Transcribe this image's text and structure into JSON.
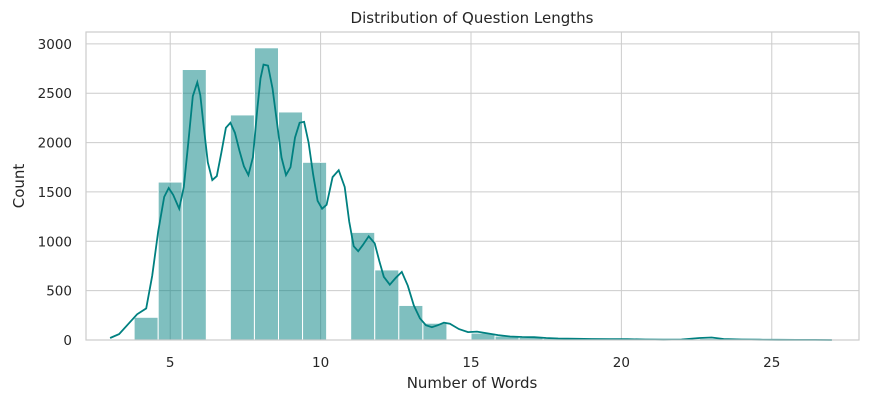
{
  "chart_data": {
    "type": "bar",
    "title": "Distribution of Question Lengths",
    "xlabel": "Number of Words",
    "ylabel": "Count",
    "xlim": [
      2.2,
      27.9
    ],
    "ylim": [
      0,
      3120
    ],
    "xticks": [
      5,
      10,
      15,
      20,
      25
    ],
    "yticks": [
      0,
      500,
      1000,
      1500,
      2000,
      2500,
      3000
    ],
    "grid": true,
    "color": "#008080",
    "bins": [
      {
        "x0": 3.8,
        "x1": 4.6,
        "count": 230
      },
      {
        "x0": 4.6,
        "x1": 5.4,
        "count": 1600
      },
      {
        "x0": 5.4,
        "x1": 6.2,
        "count": 2740
      },
      {
        "x0": 7.0,
        "x1": 7.8,
        "count": 2280
      },
      {
        "x0": 7.8,
        "x1": 8.6,
        "count": 2960
      },
      {
        "x0": 8.6,
        "x1": 9.4,
        "count": 2310
      },
      {
        "x0": 9.4,
        "x1": 10.2,
        "count": 1800
      },
      {
        "x0": 11.0,
        "x1": 11.8,
        "count": 1090
      },
      {
        "x0": 11.8,
        "x1": 12.6,
        "count": 710
      },
      {
        "x0": 12.6,
        "x1": 13.4,
        "count": 350
      },
      {
        "x0": 13.4,
        "x1": 14.2,
        "count": 170
      },
      {
        "x0": 15.0,
        "x1": 15.8,
        "count": 70
      },
      {
        "x0": 15.8,
        "x1": 16.6,
        "count": 40
      },
      {
        "x0": 16.6,
        "x1": 17.4,
        "count": 25
      },
      {
        "x0": 17.4,
        "x1": 18.2,
        "count": 15
      },
      {
        "x0": 18.2,
        "x1": 19.0,
        "count": 10
      },
      {
        "x0": 19.0,
        "x1": 19.8,
        "count": 8
      },
      {
        "x0": 20.2,
        "x1": 21.0,
        "count": 8
      },
      {
        "x0": 22.6,
        "x1": 23.4,
        "count": 15
      },
      {
        "x0": 25.8,
        "x1": 27.0,
        "count": 5
      }
    ],
    "kde": {
      "x": [
        3.0,
        3.3,
        3.6,
        3.9,
        4.2,
        4.4,
        4.6,
        4.8,
        4.95,
        5.1,
        5.3,
        5.45,
        5.6,
        5.75,
        5.9,
        6.0,
        6.1,
        6.25,
        6.4,
        6.55,
        6.7,
        6.85,
        7.0,
        7.15,
        7.3,
        7.45,
        7.6,
        7.75,
        7.9,
        8.0,
        8.1,
        8.25,
        8.4,
        8.55,
        8.7,
        8.85,
        9.0,
        9.15,
        9.3,
        9.45,
        9.6,
        9.75,
        9.9,
        10.05,
        10.2,
        10.4,
        10.6,
        10.8,
        10.95,
        11.1,
        11.25,
        11.4,
        11.6,
        11.8,
        11.95,
        12.1,
        12.3,
        12.5,
        12.7,
        12.9,
        13.1,
        13.3,
        13.5,
        13.7,
        13.9,
        14.1,
        14.3,
        14.6,
        14.9,
        15.2,
        15.5,
        15.9,
        16.3,
        16.7,
        17.1,
        17.5,
        17.9,
        18.5,
        19.0,
        19.6,
        20.2,
        20.8,
        21.4,
        22.0,
        22.6,
        23.0,
        23.4,
        24.0,
        24.6,
        25.2,
        25.8,
        26.4,
        27.0
      ],
      "y": [
        20,
        60,
        160,
        260,
        320,
        650,
        1100,
        1450,
        1540,
        1470,
        1330,
        1550,
        2000,
        2470,
        2610,
        2480,
        2200,
        1800,
        1620,
        1660,
        1900,
        2150,
        2200,
        2100,
        1920,
        1760,
        1670,
        1850,
        2350,
        2650,
        2790,
        2780,
        2550,
        2200,
        1850,
        1670,
        1750,
        2050,
        2200,
        2210,
        2000,
        1680,
        1410,
        1330,
        1370,
        1650,
        1720,
        1550,
        1200,
        950,
        900,
        960,
        1050,
        980,
        800,
        640,
        560,
        630,
        690,
        550,
        350,
        220,
        150,
        130,
        150,
        175,
        165,
        110,
        80,
        85,
        70,
        50,
        35,
        30,
        28,
        20,
        15,
        12,
        10,
        8,
        8,
        5,
        3,
        5,
        20,
        25,
        10,
        5,
        3,
        2,
        1,
        1,
        0
      ]
    }
  }
}
